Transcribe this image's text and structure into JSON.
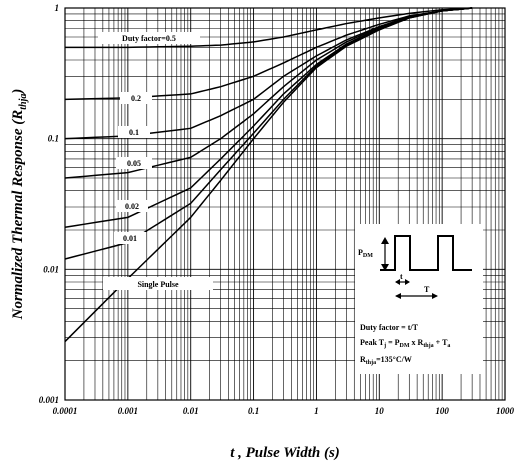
{
  "chart_data": {
    "type": "line",
    "title": "",
    "xlabel_var": "t",
    "xlabel_rest": " , Pulse Width (s)",
    "ylabel_main": "Normalized Thermal Response (R",
    "ylabel_sub": "thja",
    "ylabel_close": ")",
    "x_scale": "log",
    "y_scale": "log",
    "xlim": [
      0.0001,
      1000
    ],
    "ylim": [
      0.001,
      1
    ],
    "grid": true,
    "x_tick_labels": [
      "0.0001",
      "0.001",
      "0.01",
      "0.1",
      "1",
      "10",
      "100",
      "1000"
    ],
    "x_tick_values": [
      0.0001,
      0.001,
      0.01,
      0.1,
      1,
      10,
      100,
      1000
    ],
    "y_tick_labels": [
      "0.001",
      "0.01",
      "0.1",
      "1"
    ],
    "y_tick_values": [
      0.001,
      0.01,
      0.1,
      1
    ],
    "series": [
      {
        "name": "Duty factor=0.5",
        "x": [
          0.0001,
          0.001,
          0.01,
          0.03,
          0.1,
          0.3,
          1,
          3,
          10,
          30,
          100,
          300
        ],
        "y": [
          0.5,
          0.5,
          0.51,
          0.52,
          0.55,
          0.6,
          0.68,
          0.76,
          0.84,
          0.91,
          0.97,
          1.0
        ]
      },
      {
        "name": "0.2",
        "x": [
          0.0001,
          0.001,
          0.01,
          0.03,
          0.1,
          0.3,
          1,
          3,
          10,
          30,
          100,
          300
        ],
        "y": [
          0.2,
          0.205,
          0.22,
          0.25,
          0.3,
          0.38,
          0.5,
          0.62,
          0.75,
          0.87,
          0.95,
          1.0
        ]
      },
      {
        "name": "0.1",
        "x": [
          0.0001,
          0.001,
          0.01,
          0.03,
          0.1,
          0.3,
          1,
          3,
          10,
          30,
          100,
          300
        ],
        "y": [
          0.1,
          0.105,
          0.12,
          0.15,
          0.2,
          0.3,
          0.43,
          0.57,
          0.72,
          0.86,
          0.95,
          1.0
        ]
      },
      {
        "name": "0.05",
        "x": [
          0.0001,
          0.001,
          0.01,
          0.03,
          0.1,
          0.3,
          1,
          3,
          10,
          30,
          100,
          300
        ],
        "y": [
          0.05,
          0.055,
          0.072,
          0.1,
          0.155,
          0.25,
          0.4,
          0.55,
          0.71,
          0.85,
          0.95,
          1.0
        ]
      },
      {
        "name": "0.02",
        "x": [
          0.0001,
          0.001,
          0.01,
          0.03,
          0.1,
          0.3,
          1,
          3,
          10,
          30,
          100,
          300
        ],
        "y": [
          0.021,
          0.025,
          0.042,
          0.07,
          0.125,
          0.22,
          0.37,
          0.53,
          0.7,
          0.85,
          0.95,
          1.0
        ]
      },
      {
        "name": "0.01",
        "x": [
          0.0001,
          0.001,
          0.01,
          0.03,
          0.1,
          0.3,
          1,
          3,
          10,
          30,
          100,
          300
        ],
        "y": [
          0.012,
          0.016,
          0.032,
          0.058,
          0.11,
          0.2,
          0.36,
          0.52,
          0.69,
          0.84,
          0.95,
          1.0
        ]
      },
      {
        "name": "Single Pulse",
        "x": [
          0.0001,
          0.001,
          0.01,
          0.03,
          0.1,
          0.3,
          1,
          3,
          10,
          30,
          100,
          300
        ],
        "y": [
          0.0028,
          0.0085,
          0.025,
          0.048,
          0.1,
          0.19,
          0.35,
          0.51,
          0.68,
          0.84,
          0.95,
          1.0
        ]
      }
    ],
    "inset": {
      "pdm_main": "P",
      "pdm_sub": "DM",
      "t_label": "t",
      "T_label": "T",
      "duty_line": "Duty factor = t/T",
      "peak_pre": "Peak T",
      "peak_sub_j": "j",
      "peak_mid": " = P",
      "peak_sub_dm": "DM",
      "peak_x": " x R",
      "peak_sub_thja": "thja",
      "peak_plus": " + T",
      "peak_sub_a": "a",
      "rth_main": "R",
      "rth_sub": "thja",
      "rth_value": "=135°C/W"
    }
  }
}
